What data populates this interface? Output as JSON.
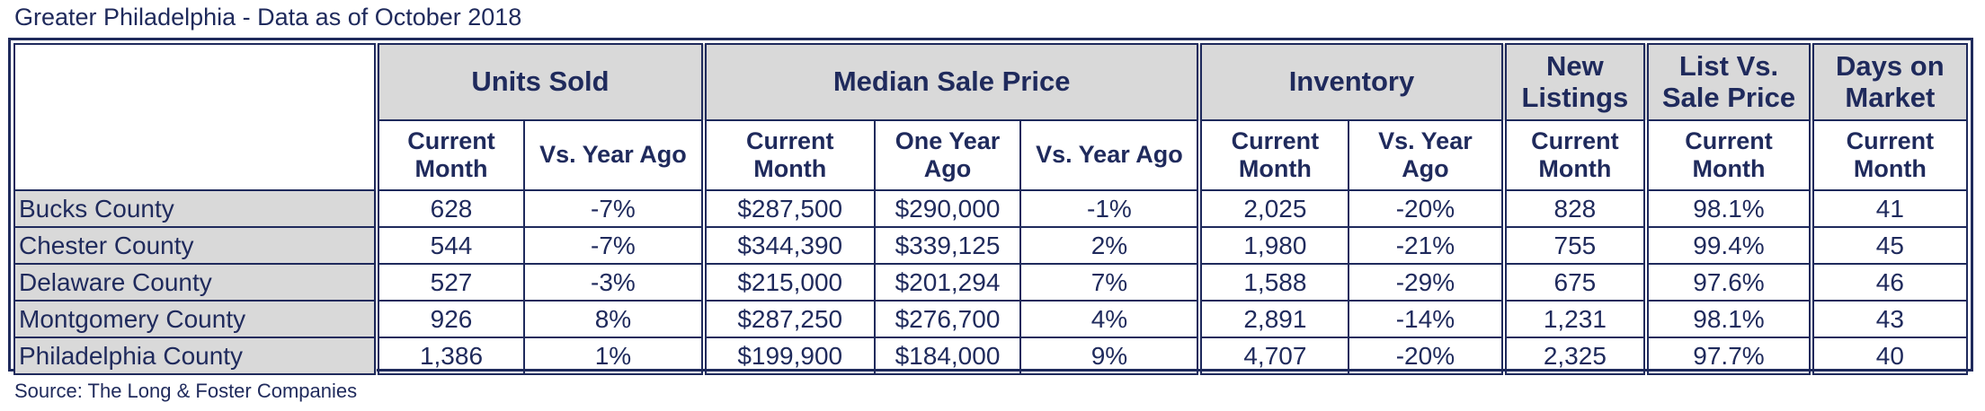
{
  "title": "Greater Philadelphia - Data as of October 2018",
  "source": "Source: The Long & Foster Companies",
  "table": {
    "group_headers": {
      "units_sold": "Units Sold",
      "median_sale_price": "Median Sale Price",
      "inventory": "Inventory",
      "new_listings": "New Listings",
      "list_vs_sale": "List Vs. Sale Price",
      "days_on_market": "Days on Market"
    },
    "sub_headers": {
      "current_month": "Current Month",
      "vs_year_ago": "Vs. Year Ago",
      "one_year_ago": "One Year Ago"
    },
    "rows": [
      {
        "name": "Bucks County",
        "units_current": "628",
        "units_vs": "-7%",
        "price_current": "$287,500",
        "price_year_ago": "$290,000",
        "price_vs": "-1%",
        "inv_current": "2,025",
        "inv_vs": "-20%",
        "new_listings": "828",
        "list_vs_sale": "98.1%",
        "days": "41"
      },
      {
        "name": "Chester County",
        "units_current": "544",
        "units_vs": "-7%",
        "price_current": "$344,390",
        "price_year_ago": "$339,125",
        "price_vs": "2%",
        "inv_current": "1,980",
        "inv_vs": "-21%",
        "new_listings": "755",
        "list_vs_sale": "99.4%",
        "days": "45"
      },
      {
        "name": "Delaware County",
        "units_current": "527",
        "units_vs": "-3%",
        "price_current": "$215,000",
        "price_year_ago": "$201,294",
        "price_vs": "7%",
        "inv_current": "1,588",
        "inv_vs": "-29%",
        "new_listings": "675",
        "list_vs_sale": "97.6%",
        "days": "46"
      },
      {
        "name": "Montgomery County",
        "units_current": "926",
        "units_vs": "8%",
        "price_current": "$287,250",
        "price_year_ago": "$276,700",
        "price_vs": "4%",
        "inv_current": "2,891",
        "inv_vs": "-14%",
        "new_listings": "1,231",
        "list_vs_sale": "98.1%",
        "days": "43"
      },
      {
        "name": "Philadelphia County",
        "units_current": "1,386",
        "units_vs": "1%",
        "price_current": "$199,900",
        "price_year_ago": "$184,000",
        "price_vs": "9%",
        "inv_current": "4,707",
        "inv_vs": "-20%",
        "new_listings": "2,325",
        "list_vs_sale": "97.7%",
        "days": "40"
      }
    ]
  },
  "colors": {
    "text": "#1f2a5c",
    "header_fill": "#d9d9d9",
    "border": "#1f2a5c"
  }
}
